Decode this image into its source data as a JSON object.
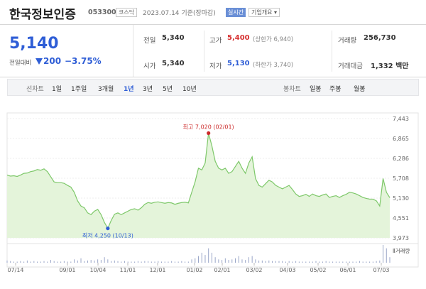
{
  "header": {
    "stock_name": "한국정보인증",
    "stock_code": "053300",
    "market": "코스닥",
    "date_text": "2023.07.14 기준(장마감)",
    "realtime": "실시간",
    "company_info": "기업개요 ▾"
  },
  "price": {
    "current": "5,140",
    "change_label": "전일대비",
    "change_amount": "200",
    "change_percent": "−3.75%",
    "direction": "down",
    "color": "#2f5ed6"
  },
  "stats": {
    "prev_close_label": "전일",
    "prev_close": "5,340",
    "open_label": "시가",
    "open": "5,340",
    "high_label": "고가",
    "high": "5,400",
    "upper_limit": "(상한가 6,940)",
    "low_label": "저가",
    "low": "5,130",
    "lower_limit": "(하한가 3,740)",
    "volume_label": "거래량",
    "volume": "256,730",
    "amount_label": "거래대금",
    "amount": "1,332 백만"
  },
  "period_bar": {
    "line_chart_label": "선차트",
    "periods": [
      "1일",
      "1주일",
      "3개월",
      "1년",
      "3년",
      "5년",
      "10년"
    ],
    "active_period": "1년",
    "candle_chart_label": "봉차트",
    "candle_periods": [
      "일봉",
      "주봉",
      "월봉"
    ]
  },
  "chart_data": {
    "type": "area",
    "title": "",
    "xlabel": "",
    "ylabel": "",
    "y_ticks": [
      "7,443",
      "6,865",
      "6,286",
      "5,708",
      "5,130",
      "4,551",
      "3,973"
    ],
    "y_tick_values": [
      7443,
      6865,
      6286,
      5708,
      5130,
      4551,
      3973
    ],
    "ylim": [
      3973,
      7443
    ],
    "x_ticks": [
      "07/14",
      "09/01",
      "10/04",
      "11/01",
      "12/01",
      "01/02",
      "02/01",
      "03/02",
      "04/03",
      "05/02",
      "06/01",
      "07/03"
    ],
    "series": [
      {
        "values": [
          5800,
          5770,
          5780,
          5760,
          5800,
          5850,
          5860,
          5900,
          5920,
          5960,
          5940,
          5980,
          5900,
          5750,
          5600,
          5580,
          5580,
          5560,
          5500,
          5450,
          5300,
          5050,
          4900,
          4850,
          4700,
          4650,
          4750,
          4800,
          4650,
          4420,
          4250,
          4480,
          4660,
          4700,
          4650,
          4700,
          4750,
          4800,
          4820,
          4780,
          4850,
          4950,
          5000,
          4980,
          5010,
          5020,
          5000,
          4980,
          5000,
          4990,
          4950,
          4980,
          5000,
          5010,
          4990,
          5300,
          5600,
          6000,
          5950,
          6150,
          7020,
          6650,
          6200,
          6000,
          5950,
          6000,
          5850,
          5900,
          6050,
          6200,
          6000,
          5850,
          6150,
          6330,
          5700,
          5500,
          5450,
          5550,
          5650,
          5600,
          5500,
          5450,
          5400,
          5450,
          5500,
          5380,
          5250,
          5180,
          5200,
          5240,
          5180,
          5250,
          5200,
          5180,
          5220,
          5250,
          5150,
          5180,
          5200,
          5150,
          5200,
          5240,
          5300,
          5280,
          5250,
          5200,
          5150,
          5120,
          5100,
          5100,
          5050,
          4900,
          5700,
          5300,
          5140
        ]
      }
    ],
    "annotations": [
      {
        "text": "최고 7,020 (02/01)",
        "value": 7020,
        "date": "02/01",
        "color": "#cc2a2a"
      },
      {
        "text": "최저 4,250 (10/13)",
        "value": 4250,
        "date": "10/13",
        "color": "#2f5ed6"
      }
    ],
    "volume_label": "Ⅱ거래량",
    "volume_bars": [
      4,
      3,
      2,
      2,
      3,
      2,
      4,
      2,
      3,
      2,
      2,
      3,
      2,
      5,
      3,
      2,
      2,
      3,
      2,
      2,
      6,
      4,
      8,
      3,
      4,
      5,
      4,
      6,
      5,
      10,
      6,
      3,
      4,
      3,
      2,
      3,
      2,
      2,
      2,
      3,
      2,
      3,
      3,
      2,
      2,
      3,
      2,
      2,
      2,
      3,
      2,
      2,
      3,
      2,
      2,
      6,
      8,
      12,
      18,
      14,
      26,
      18,
      10,
      6,
      5,
      8,
      5,
      6,
      8,
      12,
      6,
      5,
      10,
      12,
      6,
      4,
      4,
      3,
      4,
      3,
      3,
      3,
      3,
      2,
      3,
      2,
      3,
      2,
      2,
      2,
      2,
      2,
      3,
      2,
      2,
      3,
      2,
      2,
      2,
      2,
      2,
      2,
      2,
      2,
      2,
      3,
      2,
      2,
      2,
      2,
      3,
      4,
      32,
      26,
      10
    ],
    "line_color": "#7ec86a",
    "fill_color": "#e4f4da"
  }
}
